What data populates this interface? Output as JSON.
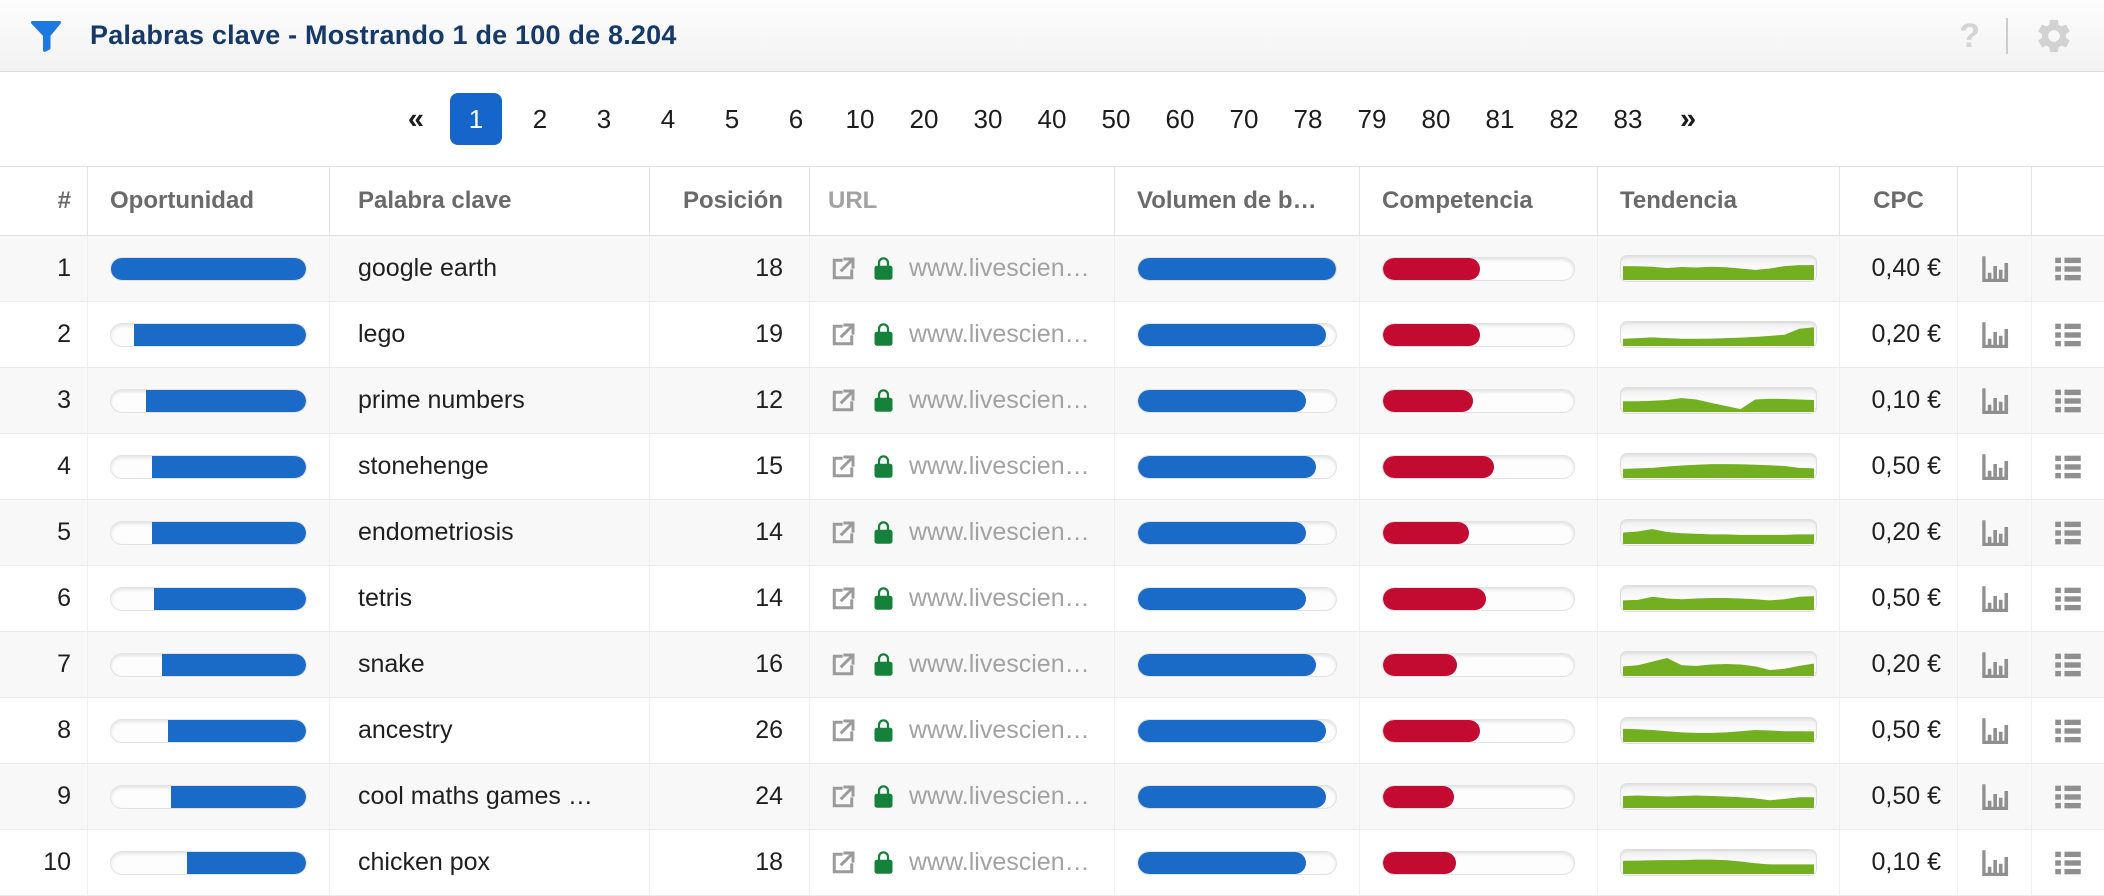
{
  "header": {
    "title": "Palabras clave - Mostrando 1 de 100 de 8.204",
    "help_label": "?"
  },
  "pagination": {
    "prev_label": "«",
    "next_label": "»",
    "active_page": "1",
    "pages": [
      "1",
      "2",
      "3",
      "4",
      "5",
      "6",
      "10",
      "20",
      "30",
      "40",
      "50",
      "60",
      "70",
      "78",
      "79",
      "80",
      "81",
      "82",
      "83"
    ]
  },
  "table": {
    "columns": [
      "#",
      "Oportunidad",
      "Palabra clave",
      "Posición",
      "URL",
      "Volumen de b…",
      "Competencia",
      "Tendencia",
      "CPC"
    ]
  },
  "rows": [
    {
      "index": "1",
      "opportunity_pct": 100,
      "keyword": "google earth",
      "position": "18",
      "url": "www.livescien…",
      "volume_pct": 100,
      "competition_pct": 51,
      "trend": [
        0.58,
        0.57,
        0.55,
        0.5,
        0.54,
        0.52,
        0.55,
        0.53,
        0.48,
        0.42,
        0.48,
        0.58,
        0.62,
        0.62
      ],
      "cpc": "0,40 €"
    },
    {
      "index": "2",
      "opportunity_pct": 88,
      "keyword": "lego",
      "position": "19",
      "url": "www.livescien…",
      "volume_pct": 95,
      "competition_pct": 51,
      "trend": [
        0.3,
        0.33,
        0.36,
        0.33,
        0.3,
        0.3,
        0.31,
        0.33,
        0.35,
        0.38,
        0.42,
        0.47,
        0.72,
        0.78
      ],
      "cpc": "0,20 €"
    },
    {
      "index": "3",
      "opportunity_pct": 82,
      "keyword": "prime numbers",
      "position": "12",
      "url": "www.livescien…",
      "volume_pct": 85,
      "competition_pct": 47,
      "trend": [
        0.45,
        0.45,
        0.47,
        0.5,
        0.58,
        0.52,
        0.38,
        0.25,
        0.12,
        0.52,
        0.55,
        0.54,
        0.52,
        0.5
      ],
      "cpc": "0,10 €"
    },
    {
      "index": "4",
      "opportunity_pct": 79,
      "keyword": "stonehenge",
      "position": "15",
      "url": "www.livescien…",
      "volume_pct": 90,
      "competition_pct": 58,
      "trend": [
        0.38,
        0.4,
        0.42,
        0.48,
        0.52,
        0.55,
        0.58,
        0.58,
        0.57,
        0.55,
        0.53,
        0.5,
        0.42,
        0.4
      ],
      "cpc": "0,50 €"
    },
    {
      "index": "5",
      "opportunity_pct": 79,
      "keyword": "endometriosis",
      "position": "14",
      "url": "www.livescien…",
      "volume_pct": 85,
      "competition_pct": 45,
      "trend": [
        0.48,
        0.52,
        0.62,
        0.5,
        0.45,
        0.43,
        0.4,
        0.4,
        0.38,
        0.38,
        0.38,
        0.38,
        0.4,
        0.4
      ],
      "cpc": "0,20 €"
    },
    {
      "index": "6",
      "opportunity_pct": 78,
      "keyword": "tetris",
      "position": "14",
      "url": "www.livescien…",
      "volume_pct": 85,
      "competition_pct": 54,
      "trend": [
        0.4,
        0.42,
        0.55,
        0.48,
        0.45,
        0.48,
        0.5,
        0.5,
        0.48,
        0.45,
        0.4,
        0.45,
        0.55,
        0.58
      ],
      "cpc": "0,50 €"
    },
    {
      "index": "7",
      "opportunity_pct": 74,
      "keyword": "snake",
      "position": "16",
      "url": "www.livescien…",
      "volume_pct": 90,
      "competition_pct": 39,
      "trend": [
        0.4,
        0.45,
        0.6,
        0.75,
        0.45,
        0.42,
        0.48,
        0.5,
        0.48,
        0.4,
        0.25,
        0.3,
        0.42,
        0.52
      ],
      "cpc": "0,20 €"
    },
    {
      "index": "8",
      "opportunity_pct": 71,
      "keyword": "ancestry",
      "position": "26",
      "url": "www.livescien…",
      "volume_pct": 95,
      "competition_pct": 51,
      "trend": [
        0.55,
        0.53,
        0.5,
        0.45,
        0.4,
        0.38,
        0.38,
        0.4,
        0.45,
        0.5,
        0.48,
        0.45,
        0.45,
        0.44
      ],
      "cpc": "0,50 €"
    },
    {
      "index": "9",
      "opportunity_pct": 69,
      "keyword": "cool maths games  …",
      "position": "24",
      "url": "www.livescien…",
      "volume_pct": 95,
      "competition_pct": 37,
      "trend": [
        0.5,
        0.52,
        0.5,
        0.48,
        0.5,
        0.52,
        0.5,
        0.48,
        0.45,
        0.4,
        0.32,
        0.38,
        0.45,
        0.45
      ],
      "cpc": "0,50 €"
    },
    {
      "index": "10",
      "opportunity_pct": 61,
      "keyword": "chicken pox",
      "position": "18",
      "url": "www.livescien…",
      "volume_pct": 85,
      "competition_pct": 38,
      "trend": [
        0.55,
        0.56,
        0.57,
        0.58,
        0.58,
        0.6,
        0.6,
        0.58,
        0.52,
        0.45,
        0.4,
        0.4,
        0.4,
        0.4
      ],
      "cpc": "0,10 €"
    }
  ],
  "colors": {
    "accent_blue": "#1565cb",
    "bar_blue": "#1a6bc8",
    "bar_red": "#c30b31",
    "spark_green": "#72b022",
    "title_navy": "#153a6a",
    "filter_blue": "#1d79e2",
    "icon_gray": "#8f8f8f",
    "lock_green": "#15813b"
  }
}
